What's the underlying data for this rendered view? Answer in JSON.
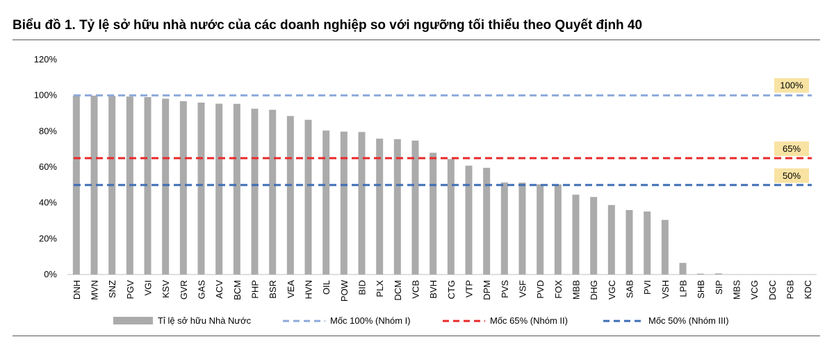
{
  "title": "Biểu đồ 1. Tỷ lệ sở hữu nhà nước của các doanh nghiệp so với ngưỡng tối thiểu theo Quyết định 40",
  "colors": {
    "bar": "#ABABAB",
    "line100": "#8EA9DB",
    "line65": "#E8292A",
    "line50": "#3D6EB4",
    "annotation_bg": "#F8E3A3"
  },
  "chart_data": {
    "type": "bar",
    "title": "Biểu đồ 1. Tỷ lệ sở hữu nhà nước của các doanh nghiệp so với ngưỡng tối thiểu theo Quyết định 40",
    "xlabel": "",
    "ylabel": "",
    "ylim": [
      0,
      120
    ],
    "yticks": [
      "0%",
      "20%",
      "40%",
      "60%",
      "80%",
      "100%",
      "120%"
    ],
    "grid": false,
    "legend_position": "bottom",
    "categories": [
      "DNH",
      "MVN",
      "SNZ",
      "PGV",
      "VGI",
      "KSV",
      "GVR",
      "GAS",
      "ACV",
      "BCM",
      "PHP",
      "BSR",
      "VEA",
      "HVN",
      "OIL",
      "POW",
      "BID",
      "PLX",
      "DCM",
      "VCB",
      "BVH",
      "CTG",
      "VTP",
      "DPM",
      "PVS",
      "VSF",
      "PVD",
      "FOX",
      "MBB",
      "DHG",
      "VGC",
      "SAB",
      "PVI",
      "VSH",
      "LPB",
      "SHB",
      "SIP",
      "MBS",
      "VCG",
      "DGC",
      "PGB",
      "KDC"
    ],
    "series": [
      {
        "name": "Tỉ lệ sở hữu Nhà Nước",
        "type": "bar",
        "values": [
          100,
          99.9,
          99.8,
          99.4,
          99.1,
          98.2,
          96.8,
          96,
          95.4,
          95.3,
          92.6,
          92,
          88.5,
          86.4,
          80.4,
          79.8,
          79.6,
          75.9,
          75.6,
          74.8,
          68,
          64.5,
          60.8,
          59.6,
          51.4,
          51.3,
          50.4,
          50.3,
          44.6,
          43.3,
          38.8,
          36,
          35.2,
          30.5,
          6.5,
          0.5,
          0.6,
          0,
          0,
          0,
          0,
          0
        ]
      },
      {
        "name": "Mốc 100% (Nhóm I)",
        "type": "threshold",
        "value": 100
      },
      {
        "name": "Mốc 65% (Nhóm II)",
        "type": "threshold",
        "value": 65
      },
      {
        "name": "Mốc 50% (Nhóm III)",
        "type": "threshold",
        "value": 50
      }
    ],
    "annotations": [
      "100%",
      "65%",
      "50%"
    ]
  }
}
